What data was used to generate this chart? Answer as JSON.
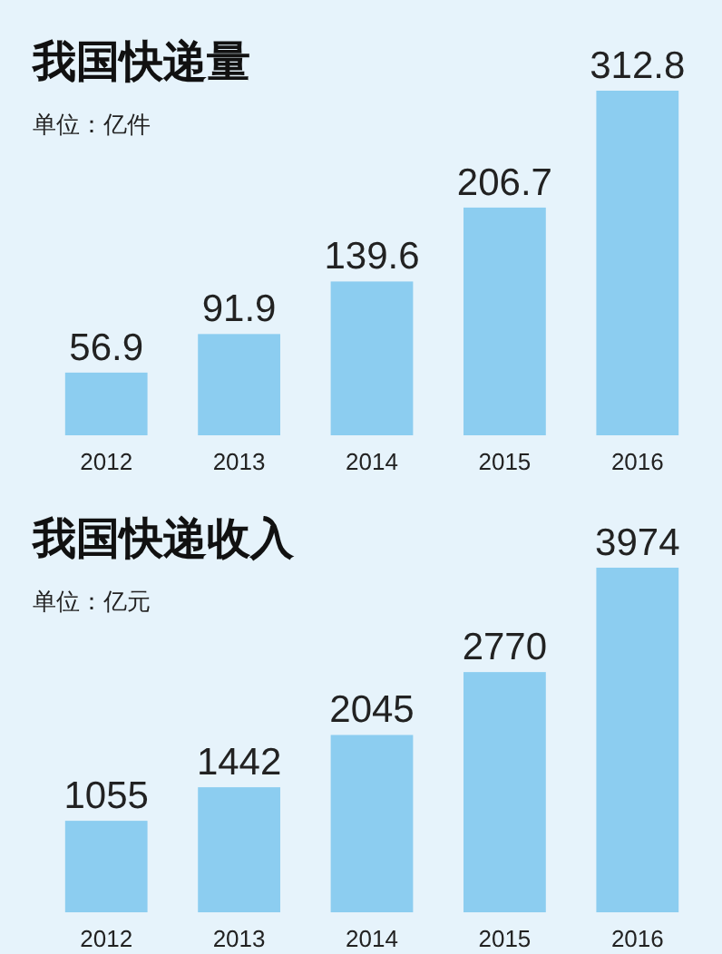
{
  "chart_data": [
    {
      "type": "bar",
      "title": "我国快递量",
      "subtitle": "单位：亿件",
      "categories": [
        "2012",
        "2013",
        "2014",
        "2015",
        "2016"
      ],
      "values": [
        56.9,
        91.9,
        139.6,
        206.7,
        312.8
      ],
      "color": "#8ccdf0",
      "data_labels": true,
      "legend": false,
      "grid": false
    },
    {
      "type": "bar",
      "title": "我国快递收入",
      "subtitle": "单位：亿元",
      "categories": [
        "2012",
        "2013",
        "2014",
        "2015",
        "2016"
      ],
      "values": [
        1055,
        1442,
        2045,
        2770,
        3974
      ],
      "color": "#8ccdf0",
      "data_labels": true,
      "legend": false,
      "grid": false
    }
  ]
}
